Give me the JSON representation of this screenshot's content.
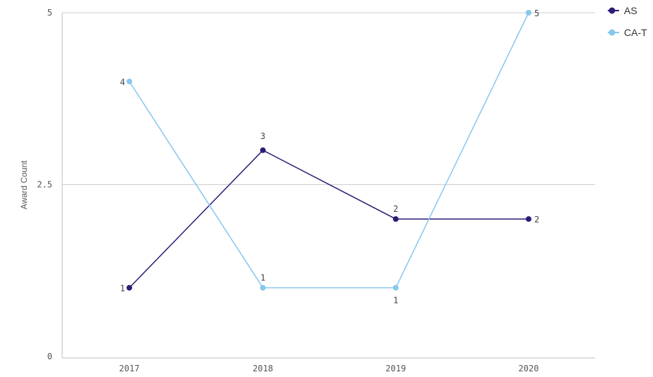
{
  "chart_data": {
    "type": "line",
    "title": "",
    "xlabel": "",
    "ylabel": "Award Count",
    "categories": [
      "2017",
      "2018",
      "2019",
      "2020"
    ],
    "ylim": [
      0,
      5
    ],
    "yticks": [
      0,
      2.5,
      5
    ],
    "ytick_labels": [
      "0",
      "2.5",
      "5"
    ],
    "grid": true,
    "legend_position": "top-right",
    "series": [
      {
        "name": "AS",
        "color": "#2e1a78",
        "values": [
          1,
          3,
          2,
          2
        ]
      },
      {
        "name": "CA-T",
        "color": "#86c8ec",
        "values": [
          4,
          1,
          1,
          5
        ]
      }
    ]
  }
}
